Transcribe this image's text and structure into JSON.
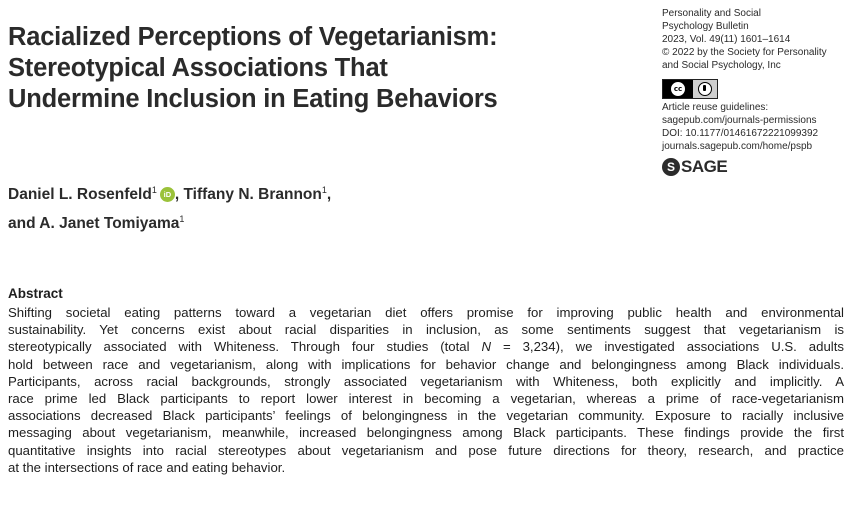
{
  "title": {
    "lines": [
      "Racialized Perceptions of Vegetarianism:",
      "Stereotypical Associations That",
      "Undermine Inclusion in Eating Behaviors"
    ]
  },
  "journal_meta": {
    "journal": "Personality and Social",
    "journal_line2": "Psychology Bulletin",
    "citation": "2023, Vol. 49(11) 1601–1614",
    "copyright": "© 2022 by the Society for Personality",
    "copyright_line2": "and Social Psychology, Inc",
    "license_icon": "cc-by-license-icon",
    "reuse_label": "Article reuse guidelines:",
    "reuse_url": "sagepub.com/journals-permissions",
    "doi": "DOI: 10.1177/01461672221099392",
    "journal_url": "journals.sagepub.com/home/pspb",
    "publisher_logo_text": "SAGE"
  },
  "authors": {
    "author1": "Daniel L. Rosenfeld",
    "author1_sup": "1",
    "orcid_label": "iD",
    "author2_prefix": ", ",
    "author2": "Tiffany N. Brannon",
    "author2_sup": "1",
    "author2_suffix": ",",
    "author3_prefix": "and ",
    "author3": "A. Janet Tomiyama",
    "author3_sup": "1"
  },
  "abstract": {
    "heading": "Abstract",
    "lines": [
      "Shifting societal eating patterns toward a vegetarian diet offers promise for improving public health and environmental",
      "sustainability. Yet concerns exist about racial disparities in inclusion, as some sentiments suggest that vegetarianism is",
      "stereotypically associated with Whiteness. Through four studies (total N = 3,234), we investigated associations U.S. adults",
      "hold between race and vegetarianism, along with implications for behavior change and belongingness among Black individuals.",
      "Participants, across racial backgrounds, strongly associated vegetarianism with Whiteness, both explicitly and implicitly. A",
      "race prime led Black participants to report lower interest in becoming a vegetarian, whereas a prime of race-vegetarianism",
      "associations decreased Black participants’ feelings of belongingness in the vegetarian community. Exposure to racially inclusive",
      "messaging about vegetarianism, meanwhile, increased belongingness among Black participants. These findings provide the first",
      "quantitative insights into racial stereotypes about vegetarianism and pose future directions for theory, research, and practice",
      "at the intersections of race and eating behavior."
    ]
  },
  "colors": {
    "orcid": "#9bc23a",
    "text": "#1e1e1e"
  }
}
